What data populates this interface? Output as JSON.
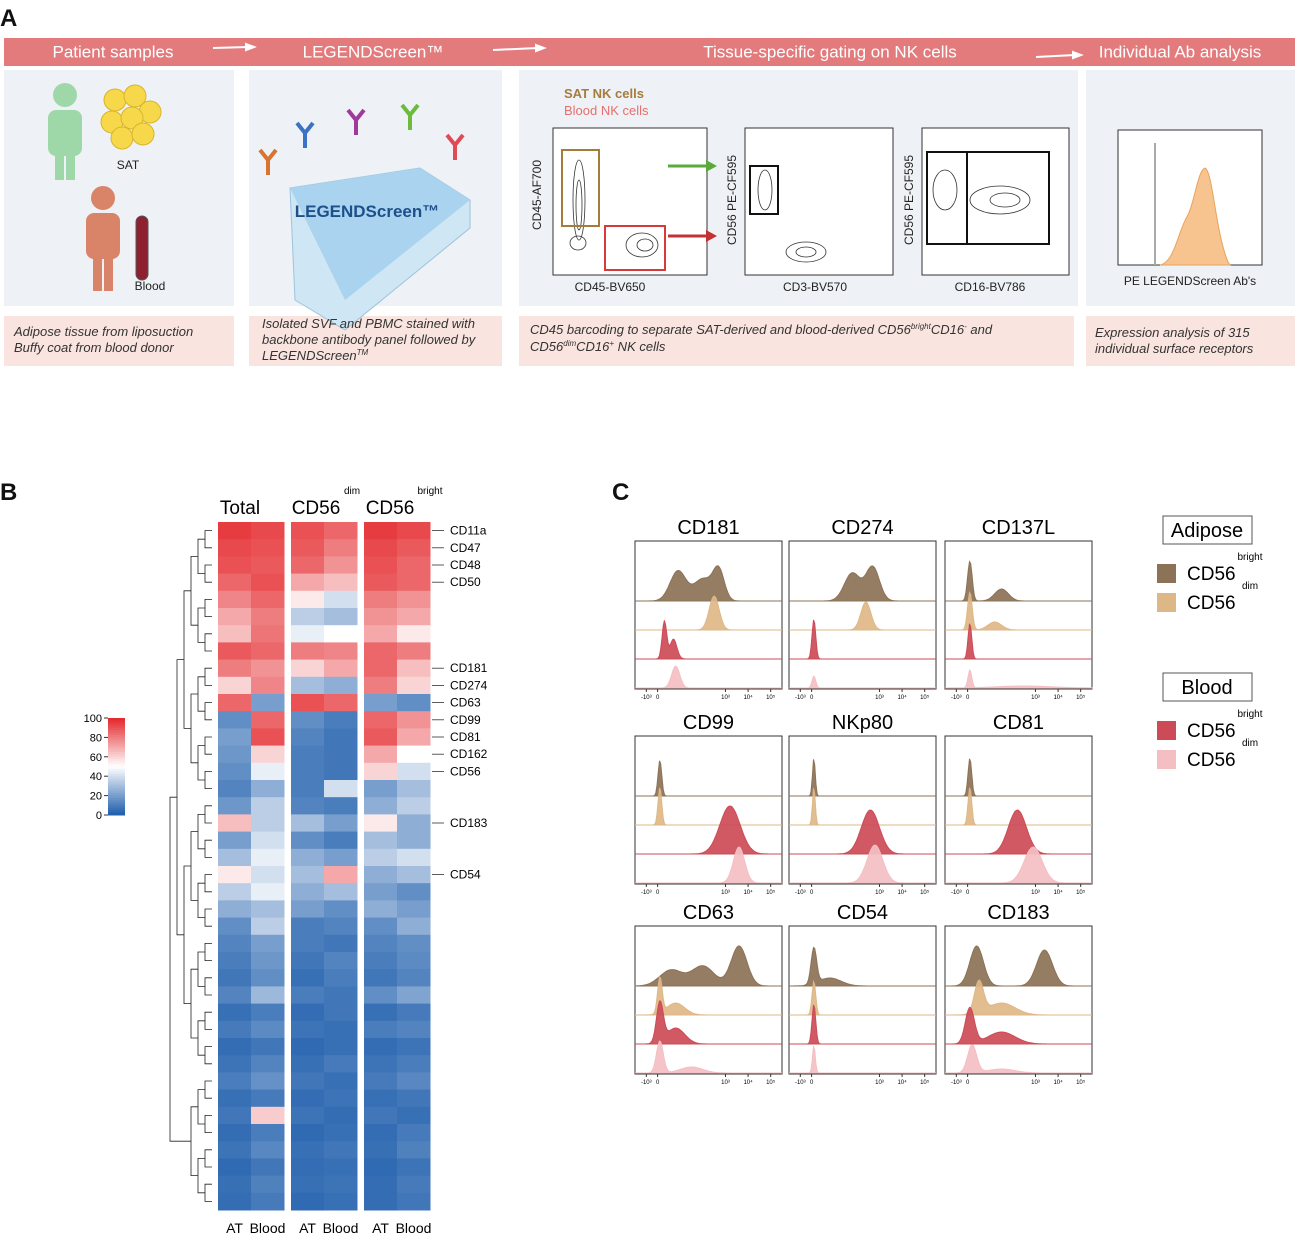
{
  "panel_labels": [
    "A",
    "B",
    "C"
  ],
  "panel_a": {
    "stages": [
      "Patient samples",
      "LEGENDScreen™",
      "Tissue-specific gating on NK cells",
      "Individual Ab analysis"
    ],
    "sat_label": "SAT",
    "blood_label": "Blood",
    "plate_label": "LEGENDScreen™",
    "gating_legend": [
      "SAT NK cells",
      "Blood NK cells"
    ],
    "plots": [
      {
        "x_label": "CD45-BV650",
        "y_label": "CD45-AF700"
      },
      {
        "x_label": "CD3-BV570",
        "y_label": "CD56 PE-CF595"
      },
      {
        "x_label": "CD16-BV786",
        "y_label": "CD56 PE-CF595"
      }
    ],
    "ab_x_label": "PE LEGENDScreen Ab's",
    "captions": [
      [
        [
          "Adipose tissue from liposuction"
        ],
        [
          "Buffy coat from blood donor"
        ]
      ],
      [
        [
          "Isolated SVF and PBMC stained with"
        ],
        [
          "backbone antibody panel followed by"
        ],
        [
          "LEGENDScreen",
          "TM"
        ]
      ],
      [
        [
          "CD45 barcoding to separate SAT-derived and blood-derived CD56",
          "bright",
          "CD16",
          "-",
          " and"
        ],
        [
          "CD56",
          "dim",
          "CD16",
          "+",
          " NK cells"
        ]
      ],
      [
        [
          "Expression analysis of 315"
        ],
        [
          "individual surface receptors"
        ]
      ]
    ]
  },
  "chart_data": [
    {
      "type": "heatmap",
      "groups": [
        {
          "name": "Total"
        },
        {
          "name": "CD56",
          "sup": "dim"
        },
        {
          "name": "CD56",
          "sup": "bright"
        }
      ],
      "columns": [
        "AT",
        "Blood",
        "AT",
        "Blood",
        "AT",
        "Blood"
      ],
      "rows": [
        "CD11a",
        "CD47",
        "CD48",
        "CD50",
        null,
        null,
        null,
        null,
        "CD181",
        "CD274",
        "CD63",
        "CD99",
        "CD81",
        "CD162",
        "CD56",
        null,
        null,
        "CD183",
        null,
        null,
        "CD54",
        null,
        null,
        null,
        null,
        null,
        null,
        null,
        null,
        null,
        null,
        null,
        null,
        null,
        null,
        null,
        null,
        null,
        null,
        null
      ],
      "values": [
        [
          95,
          92,
          90,
          85,
          95,
          92
        ],
        [
          92,
          90,
          88,
          80,
          92,
          88
        ],
        [
          90,
          88,
          85,
          75,
          90,
          85
        ],
        [
          85,
          90,
          70,
          65,
          88,
          85
        ],
        [
          78,
          85,
          55,
          40,
          80,
          75
        ],
        [
          70,
          80,
          35,
          30,
          75,
          70
        ],
        [
          65,
          82,
          45,
          50,
          70,
          55
        ],
        [
          88,
          85,
          80,
          78,
          85,
          80
        ],
        [
          80,
          75,
          60,
          70,
          85,
          65
        ],
        [
          60,
          78,
          30,
          25,
          80,
          60
        ],
        [
          85,
          20,
          90,
          85,
          20,
          15
        ],
        [
          15,
          85,
          15,
          10,
          85,
          75
        ],
        [
          20,
          90,
          12,
          8,
          88,
          70
        ],
        [
          18,
          60,
          10,
          8,
          70,
          50
        ],
        [
          15,
          45,
          10,
          8,
          60,
          40
        ],
        [
          12,
          25,
          10,
          40,
          20,
          30
        ],
        [
          18,
          35,
          12,
          10,
          25,
          35
        ],
        [
          65,
          35,
          30,
          20,
          55,
          25
        ],
        [
          20,
          40,
          15,
          10,
          30,
          25
        ],
        [
          30,
          45,
          25,
          20,
          35,
          40
        ],
        [
          55,
          40,
          30,
          70,
          25,
          30
        ],
        [
          35,
          45,
          25,
          30,
          20,
          15
        ],
        [
          25,
          30,
          20,
          15,
          25,
          20
        ],
        [
          15,
          35,
          10,
          12,
          15,
          25
        ],
        [
          12,
          20,
          10,
          8,
          12,
          15
        ],
        [
          10,
          18,
          8,
          12,
          10,
          14
        ],
        [
          8,
          15,
          6,
          10,
          8,
          12
        ],
        [
          12,
          28,
          10,
          8,
          15,
          22
        ],
        [
          6,
          10,
          5,
          8,
          6,
          9
        ],
        [
          9,
          14,
          7,
          6,
          10,
          12
        ],
        [
          5,
          8,
          4,
          6,
          5,
          7
        ],
        [
          7,
          12,
          6,
          9,
          7,
          10
        ],
        [
          10,
          16,
          8,
          6,
          9,
          13
        ],
        [
          6,
          9,
          5,
          7,
          6,
          8
        ],
        [
          8,
          62,
          7,
          5,
          8,
          6
        ],
        [
          5,
          10,
          4,
          6,
          5,
          9
        ],
        [
          7,
          13,
          6,
          8,
          6,
          11
        ],
        [
          4,
          8,
          5,
          6,
          4,
          7
        ],
        [
          6,
          11,
          6,
          7,
          5,
          9
        ],
        [
          5,
          9,
          4,
          6,
          5,
          8
        ]
      ],
      "clim": [
        0,
        100
      ],
      "colorbar_ticks": [
        0,
        20,
        40,
        60,
        80,
        100
      ],
      "colors": [
        "#1d5dab",
        "#ffffff",
        "#e3262a"
      ]
    },
    {
      "type": "ridgeline",
      "xlim": [
        -1,
        5.5
      ],
      "xticks": [
        {
          "value": -0.5,
          "label": "-10³"
        },
        0,
        {
          "value": 3,
          "label": "10³"
        },
        {
          "value": 4,
          "label": "10⁴"
        },
        {
          "value": 5,
          "label": "10⁵"
        }
      ],
      "legend": [
        {
          "title": "Adipose",
          "series": [
            {
              "name": "CD56",
              "sup": "bright",
              "color": "#8c7256"
            },
            {
              "name": "CD56",
              "sup": "dim",
              "color": "#deb787"
            }
          ]
        },
        {
          "title": "Blood",
          "series": [
            {
              "name": "CD56",
              "sup": "bright",
              "color": "#cc4b57"
            },
            {
              "name": "CD56",
              "sup": "dim",
              "color": "#f4bfc3"
            }
          ]
        }
      ],
      "panels": [
        {
          "title": "CD181",
          "tracks": [
            [
              [
                0.9,
                0.75,
                0.35
              ],
              [
                2.0,
                0.55,
                0.4
              ],
              [
                2.7,
                0.75,
                0.25
              ]
            ],
            [
              [
                2.5,
                0.85,
                0.22
              ]
            ],
            [
              [
                0.3,
                0.95,
                0.1
              ],
              [
                0.7,
                0.5,
                0.15
              ]
            ],
            [
              [
                0.8,
                0.55,
                0.18
              ]
            ]
          ]
        },
        {
          "title": "CD274",
          "tracks": [
            [
              [
                1.8,
                0.7,
                0.35
              ],
              [
                2.7,
                0.85,
                0.3
              ]
            ],
            [
              [
                2.4,
                0.7,
                0.22
              ]
            ],
            [
              [
                0.1,
                1.0,
                0.08
              ]
            ],
            [
              [
                0.1,
                0.3,
                0.08
              ]
            ]
          ]
        },
        {
          "title": "CD137L",
          "tracks": [
            [
              [
                0.1,
                1.0,
                0.1
              ],
              [
                1.5,
                0.3,
                0.3
              ]
            ],
            [
              [
                0.1,
                0.95,
                0.1
              ],
              [
                1.2,
                0.2,
                0.3
              ]
            ],
            [
              [
                0.1,
                0.9,
                0.08
              ]
            ],
            [
              [
                0.1,
                0.45,
                0.08
              ],
              [
                2.5,
                0.05,
                1.2
              ]
            ]
          ]
        },
        {
          "title": "CD99",
          "tracks": [
            [
              [
                0.1,
                0.9,
                0.08
              ]
            ],
            [
              [
                0.1,
                0.95,
                0.08
              ]
            ],
            [
              [
                3.2,
                1.2,
                0.45
              ]
            ],
            [
              [
                3.6,
                0.9,
                0.25
              ]
            ]
          ]
        },
        {
          "title": "NKp80",
          "tracks": [
            [
              [
                0.1,
                0.95,
                0.06
              ]
            ],
            [
              [
                0.1,
                0.95,
                0.06
              ]
            ],
            [
              [
                2.6,
                1.1,
                0.4
              ]
            ],
            [
              [
                2.8,
                0.95,
                0.35
              ]
            ]
          ]
        },
        {
          "title": "CD81",
          "tracks": [
            [
              [
                0.1,
                0.95,
                0.08
              ]
            ],
            [
              [
                0.1,
                0.95,
                0.08
              ]
            ],
            [
              [
                2.2,
                1.1,
                0.4
              ]
            ],
            [
              [
                2.9,
                0.9,
                0.4
              ]
            ]
          ]
        },
        {
          "title": "CD63",
          "tracks": [
            [
              [
                0.6,
                0.4,
                0.5
              ],
              [
                2.0,
                0.5,
                0.5
              ],
              [
                3.6,
                1.0,
                0.35
              ]
            ],
            [
              [
                0.1,
                0.9,
                0.1
              ],
              [
                0.8,
                0.3,
                0.4
              ]
            ],
            [
              [
                0.1,
                1.0,
                0.15
              ],
              [
                0.8,
                0.4,
                0.4
              ]
            ],
            [
              [
                0.1,
                0.8,
                0.15
              ],
              [
                1.5,
                0.15,
                0.5
              ]
            ]
          ]
        },
        {
          "title": "CD54",
          "tracks": [
            [
              [
                0.1,
                0.9,
                0.12
              ],
              [
                0.8,
                0.2,
                0.5
              ]
            ],
            [
              [
                0.1,
                0.85,
                0.08
              ]
            ],
            [
              [
                0.1,
                1.0,
                0.08
              ]
            ],
            [
              [
                0.1,
                0.7,
                0.06
              ]
            ]
          ]
        },
        {
          "title": "CD183",
          "tracks": [
            [
              [
                0.4,
                1.0,
                0.3
              ],
              [
                3.4,
                0.9,
                0.35
              ]
            ],
            [
              [
                0.5,
                0.8,
                0.2
              ],
              [
                1.5,
                0.3,
                0.6
              ]
            ],
            [
              [
                0.1,
                0.9,
                0.2
              ],
              [
                1.5,
                0.3,
                0.6
              ]
            ],
            [
              [
                0.2,
                0.7,
                0.2
              ],
              [
                1.5,
                0.1,
                0.6
              ]
            ]
          ]
        }
      ]
    }
  ]
}
